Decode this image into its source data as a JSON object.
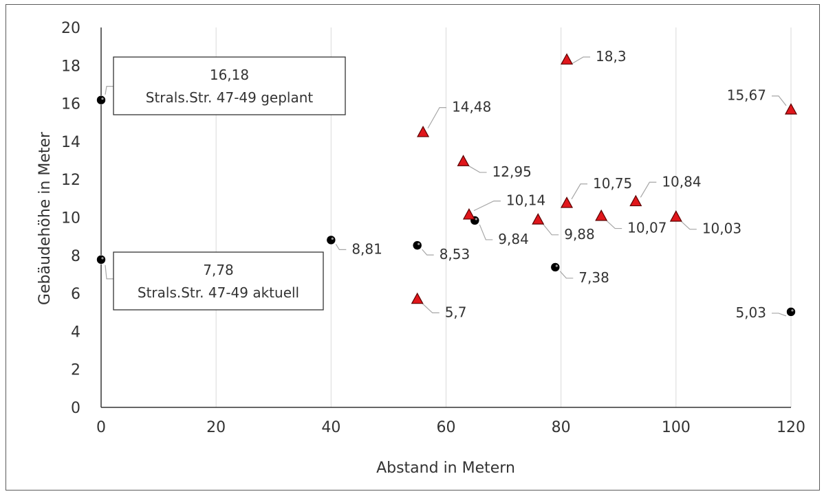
{
  "chart_data": {
    "type": "scatter",
    "xlabel": "Abstand in Metern",
    "ylabel": "Gebäudehöhe in Meter",
    "xlim": [
      0,
      120
    ],
    "ylim": [
      0,
      20
    ],
    "x_ticks": [
      0,
      20,
      40,
      60,
      80,
      100,
      120
    ],
    "y_ticks": [
      0,
      2,
      4,
      6,
      8,
      10,
      12,
      14,
      16,
      18,
      20
    ],
    "grid": "vertical",
    "legend": "none",
    "series": [
      {
        "marker": "circle",
        "color": "#000000",
        "points": [
          {
            "x": 0,
            "y": 16.18,
            "label": "16,18",
            "callout": "Strals.Str. 47-49 geplant"
          },
          {
            "x": 0,
            "y": 7.78,
            "label": "7,78",
            "callout": "Strals.Str. 47-49 aktuell"
          },
          {
            "x": 40,
            "y": 8.81,
            "label": "8,81"
          },
          {
            "x": 55,
            "y": 8.53,
            "label": "8,53"
          },
          {
            "x": 65,
            "y": 9.84,
            "label": "9,84"
          },
          {
            "x": 79,
            "y": 7.38,
            "label": "7,38"
          },
          {
            "x": 120,
            "y": 5.03,
            "label": "5,03"
          }
        ]
      },
      {
        "marker": "triangle",
        "color": "#e0161b",
        "points": [
          {
            "x": 55,
            "y": 5.7,
            "label": "5,7"
          },
          {
            "x": 56,
            "y": 14.48,
            "label": "14,48"
          },
          {
            "x": 63,
            "y": 12.95,
            "label": "12,95"
          },
          {
            "x": 64,
            "y": 10.14,
            "label": "10,14"
          },
          {
            "x": 76,
            "y": 9.88,
            "label": "9,88"
          },
          {
            "x": 81,
            "y": 18.3,
            "label": "18,3"
          },
          {
            "x": 81,
            "y": 10.75,
            "label": "10,75"
          },
          {
            "x": 87,
            "y": 10.07,
            "label": "10,07"
          },
          {
            "x": 93,
            "y": 10.84,
            "label": "10,84"
          },
          {
            "x": 100,
            "y": 10.03,
            "label": "10,03"
          },
          {
            "x": 120,
            "y": 15.67,
            "label": "15,67"
          }
        ]
      }
    ]
  }
}
